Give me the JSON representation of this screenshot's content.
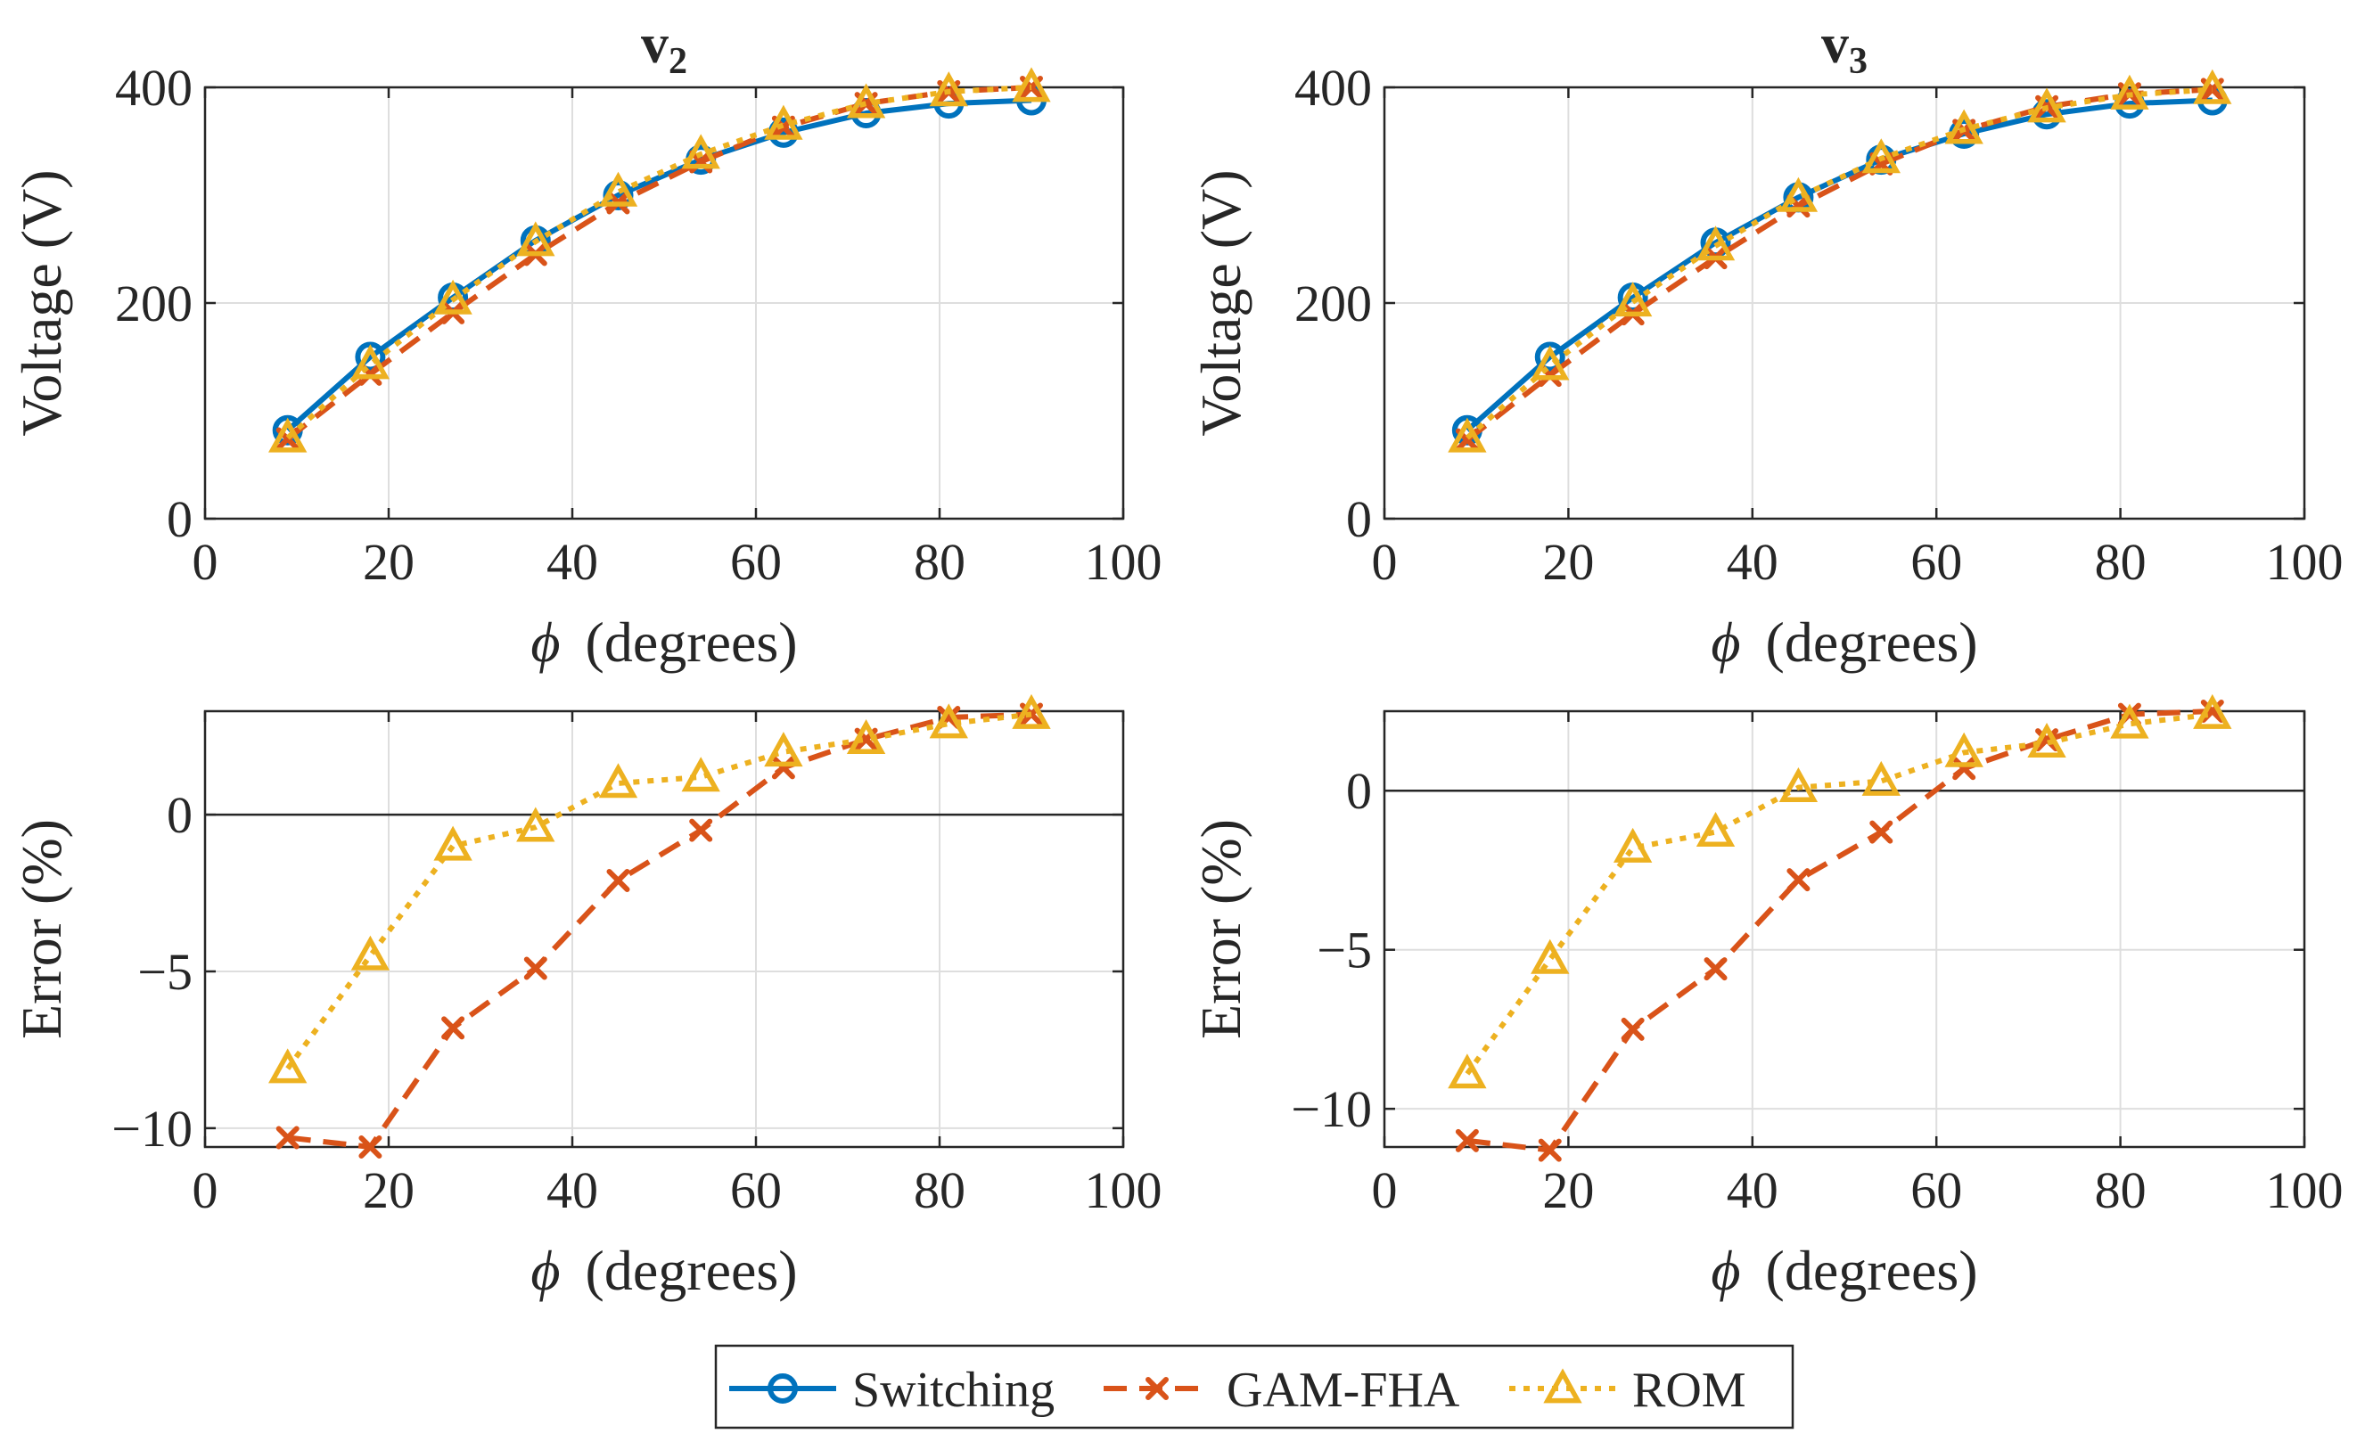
{
  "chart_data": [
    {
      "id": "v2-voltage",
      "type": "line",
      "title": "v",
      "title_sub": "2",
      "xlabel_symbol": "ϕ",
      "xlabel": "(degrees)",
      "ylabel": "Voltage (V)",
      "xlim": [
        0,
        100
      ],
      "ylim": [
        0,
        400
      ],
      "xticks": [
        0,
        20,
        40,
        60,
        80,
        100
      ],
      "yticks": [
        0,
        200,
        400
      ],
      "zero_line": false,
      "x": [
        9,
        18,
        27,
        36,
        45,
        54,
        63,
        72,
        81,
        90
      ],
      "series": [
        {
          "name": "Switching",
          "values": [
            82,
            150,
            205,
            258,
            300,
            333,
            358,
            376,
            385,
            388
          ]
        },
        {
          "name": "GAM-FHA",
          "values": [
            74,
            134,
            191,
            245,
            293,
            331,
            363,
            385,
            396,
            400
          ]
        },
        {
          "name": "ROM",
          "values": [
            75,
            143,
            203,
            257,
            303,
            338,
            365,
            385,
            396,
            400
          ]
        }
      ]
    },
    {
      "id": "v3-voltage",
      "type": "line",
      "title": "v",
      "title_sub": "3",
      "xlabel_symbol": "ϕ",
      "xlabel": "(degrees)",
      "ylabel": "Voltage (V)",
      "xlim": [
        0,
        100
      ],
      "ylim": [
        0,
        400
      ],
      "xticks": [
        0,
        20,
        40,
        60,
        80,
        100
      ],
      "yticks": [
        0,
        200,
        400
      ],
      "zero_line": false,
      "x": [
        9,
        18,
        27,
        36,
        45,
        54,
        63,
        72,
        81,
        90
      ],
      "series": [
        {
          "name": "Switching",
          "values": [
            82,
            150,
            205,
            256,
            298,
            333,
            357,
            375,
            385,
            388
          ]
        },
        {
          "name": "GAM-FHA",
          "values": [
            73,
            133,
            190,
            242,
            290,
            329,
            360,
            382,
            394,
            398
          ]
        },
        {
          "name": "ROM",
          "values": [
            75,
            142,
            201,
            253,
            298,
            334,
            361,
            381,
            393,
            398
          ]
        }
      ]
    },
    {
      "id": "v2-error",
      "type": "line",
      "title": "",
      "title_sub": "",
      "xlabel_symbol": "ϕ",
      "xlabel": "(degrees)",
      "ylabel": "Error (%)",
      "xlim": [
        0,
        100
      ],
      "ylim": [
        -10.6,
        3.3
      ],
      "xticks": [
        0,
        20,
        40,
        60,
        80,
        100
      ],
      "yticks": [
        -10,
        -5,
        0
      ],
      "zero_line": true,
      "x": [
        9,
        18,
        27,
        36,
        45,
        54,
        63,
        72,
        81,
        90
      ],
      "series": [
        {
          "name": "GAM-FHA",
          "values": [
            -10.3,
            -10.6,
            -6.8,
            -4.9,
            -2.1,
            -0.5,
            1.5,
            2.4,
            3.1,
            3.2
          ]
        },
        {
          "name": "ROM",
          "values": [
            -8.1,
            -4.5,
            -1.0,
            -0.4,
            1.0,
            1.2,
            2.0,
            2.4,
            2.9,
            3.2
          ]
        }
      ]
    },
    {
      "id": "v3-error",
      "type": "line",
      "title": "",
      "title_sub": "",
      "xlabel_symbol": "ϕ",
      "xlabel": "(degrees)",
      "ylabel": "Error (%)",
      "xlim": [
        0,
        100
      ],
      "ylim": [
        -11.2,
        2.5
      ],
      "xticks": [
        0,
        20,
        40,
        60,
        80,
        100
      ],
      "yticks": [
        -10,
        -5,
        0
      ],
      "zero_line": true,
      "x": [
        9,
        18,
        27,
        36,
        45,
        54,
        63,
        72,
        81,
        90
      ],
      "series": [
        {
          "name": "GAM-FHA",
          "values": [
            -11.0,
            -11.3,
            -7.5,
            -5.6,
            -2.8,
            -1.3,
            0.7,
            1.6,
            2.4,
            2.5
          ]
        },
        {
          "name": "ROM",
          "values": [
            -8.9,
            -5.3,
            -1.8,
            -1.3,
            0.1,
            0.3,
            1.2,
            1.5,
            2.1,
            2.4
          ]
        }
      ]
    }
  ],
  "legend": {
    "position": "bottom-center",
    "entries": [
      {
        "name": "Switching",
        "color": "#0072BD",
        "marker": "circle",
        "dash": "solid"
      },
      {
        "name": "GAM-FHA",
        "color": "#D95319",
        "marker": "x",
        "dash": "dashed"
      },
      {
        "name": "ROM",
        "color": "#EDB120",
        "marker": "triangle",
        "dash": "dotted"
      }
    ]
  }
}
